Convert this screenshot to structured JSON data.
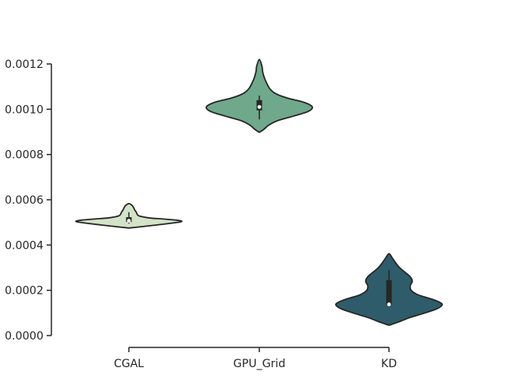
{
  "chart_data": {
    "type": "violin",
    "title": "",
    "xlabel": "",
    "ylabel": "",
    "categories": [
      "CGAL",
      "GPU_Grid",
      "KD"
    ],
    "ylim": [
      0,
      0.0012
    ],
    "yticks": [
      0,
      0.0002,
      0.0004,
      0.0006,
      0.0008,
      0.001,
      0.0012
    ],
    "ytick_labels": [
      "0.0000",
      "0.0002",
      "0.0004",
      "0.0006",
      "0.0008",
      "0.0010",
      "0.0012"
    ],
    "grid": false,
    "violins": [
      {
        "category": "CGAL",
        "color": "#d2e3c8",
        "min": 0.000475,
        "max": 0.000583,
        "q1": 0.000502,
        "median": 0.000507,
        "q3": 0.000523,
        "whisker_low": 0.000495,
        "whisker_high": 0.000545,
        "density": [
          [
            0.000475,
            0.0
          ],
          [
            0.00048,
            0.2
          ],
          [
            0.000488,
            0.5
          ],
          [
            0.000495,
            0.75
          ],
          [
            0.0005,
            0.92
          ],
          [
            0.000505,
            1.0
          ],
          [
            0.00051,
            0.9
          ],
          [
            0.000515,
            0.65
          ],
          [
            0.00052,
            0.38
          ],
          [
            0.000528,
            0.2
          ],
          [
            0.000535,
            0.16
          ],
          [
            0.000545,
            0.14
          ],
          [
            0.000555,
            0.11
          ],
          [
            0.000565,
            0.09
          ],
          [
            0.000575,
            0.06
          ],
          [
            0.000583,
            0.0
          ]
        ]
      },
      {
        "category": "GPU_Grid",
        "color": "#6fa88a",
        "min": 0.000898,
        "max": 0.00122,
        "q1": 0.000995,
        "median": 0.00101,
        "q3": 0.00104,
        "whisker_low": 0.000955,
        "whisker_high": 0.00106,
        "density": [
          [
            0.000898,
            0.0
          ],
          [
            0.00091,
            0.08
          ],
          [
            0.00093,
            0.18
          ],
          [
            0.00095,
            0.35
          ],
          [
            0.00097,
            0.65
          ],
          [
            0.00099,
            0.92
          ],
          [
            0.00101,
            1.0
          ],
          [
            0.00103,
            0.85
          ],
          [
            0.00105,
            0.52
          ],
          [
            0.00107,
            0.3
          ],
          [
            0.00109,
            0.2
          ],
          [
            0.00111,
            0.15
          ],
          [
            0.00113,
            0.11
          ],
          [
            0.00115,
            0.08
          ],
          [
            0.00117,
            0.06
          ],
          [
            0.00119,
            0.05
          ],
          [
            0.00122,
            0.0
          ]
        ]
      },
      {
        "category": "KD",
        "color": "#2f5c6a",
        "min": 4.55e-05,
        "max": 0.000362,
        "q1": 0.000135,
        "median": 0.000138,
        "q3": 0.000245,
        "whisker_low": 0.000128,
        "whisker_high": 0.00029,
        "density": [
          [
            4.55e-05,
            0.0
          ],
          [
            6e-05,
            0.18
          ],
          [
            8e-05,
            0.4
          ],
          [
            0.0001,
            0.68
          ],
          [
            0.00012,
            0.92
          ],
          [
            0.00014,
            1.0
          ],
          [
            0.00016,
            0.82
          ],
          [
            0.00018,
            0.55
          ],
          [
            0.0002,
            0.42
          ],
          [
            0.00022,
            0.4
          ],
          [
            0.00024,
            0.44
          ],
          [
            0.00026,
            0.4
          ],
          [
            0.00028,
            0.3
          ],
          [
            0.0003,
            0.2
          ],
          [
            0.00032,
            0.13
          ],
          [
            0.00034,
            0.07
          ],
          [
            0.000362,
            0.0
          ]
        ]
      }
    ]
  }
}
